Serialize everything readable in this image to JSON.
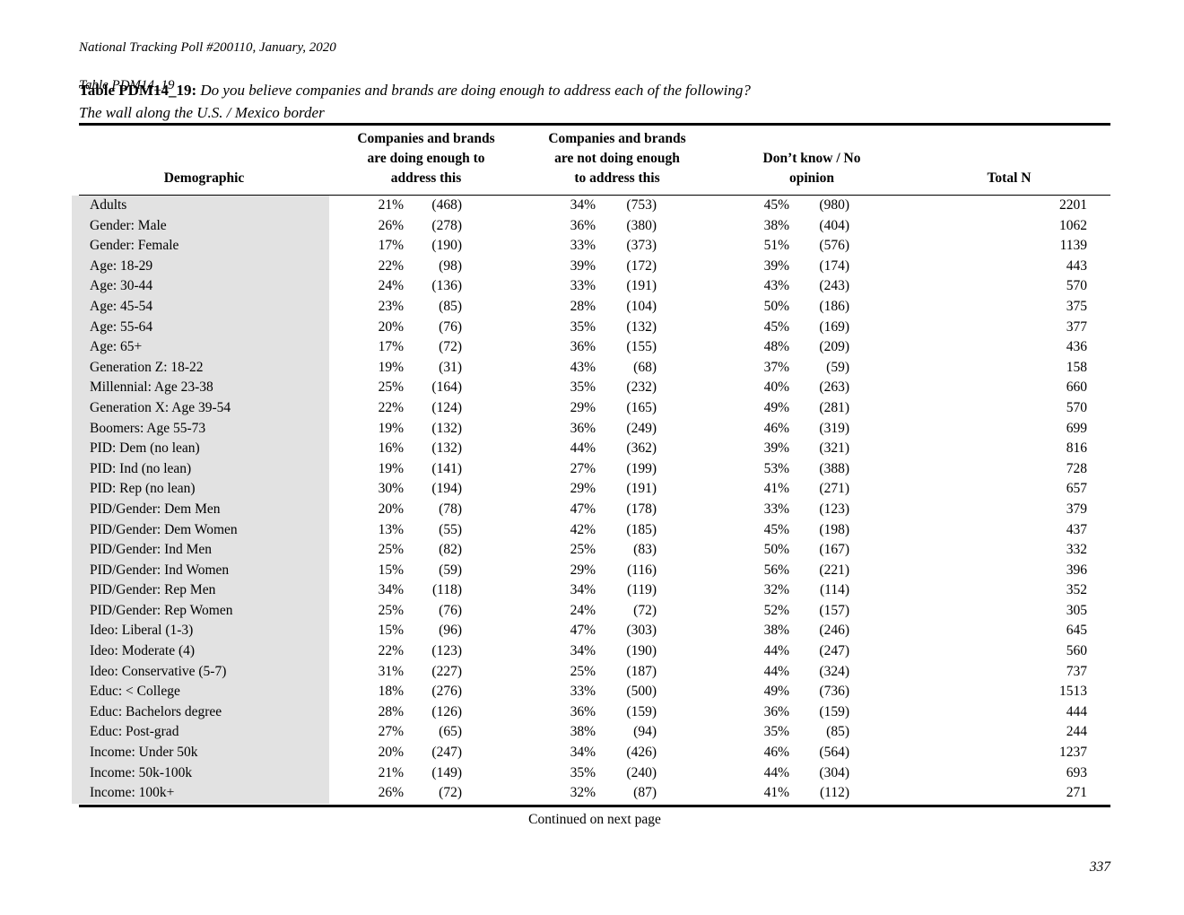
{
  "doc_header": {
    "line1": "National Tracking Poll #200110, January, 2020",
    "line2": "Table PDM14_19"
  },
  "title": {
    "label": "Table PDM14_19:",
    "question": "Do you believe companies and brands are doing enough to address each of the following?",
    "subtitle": "The wall along the U.S. / Mexico border"
  },
  "table": {
    "headers": {
      "demographic": "Demographic",
      "col1": "Companies and brands\nare doing enough to\naddress this",
      "col2": "Companies and brands\nare not doing enough\nto address this",
      "col3": "Don’t know / No\nopinion",
      "col4": "Total N"
    },
    "rows": [
      {
        "label": "Adults",
        "pct1": "21%",
        "n1": "(468)",
        "pct2": "34%",
        "n2": "(753)",
        "pct3": "45%",
        "n3": "(980)",
        "total": "2201"
      },
      {
        "label": "Gender: Male",
        "pct1": "26%",
        "n1": "(278)",
        "pct2": "36%",
        "n2": "(380)",
        "pct3": "38%",
        "n3": "(404)",
        "total": "1062"
      },
      {
        "label": "Gender: Female",
        "pct1": "17%",
        "n1": "(190)",
        "pct2": "33%",
        "n2": "(373)",
        "pct3": "51%",
        "n3": "(576)",
        "total": "1139"
      },
      {
        "label": "Age: 18-29",
        "pct1": "22%",
        "n1": "(98)",
        "pct2": "39%",
        "n2": "(172)",
        "pct3": "39%",
        "n3": "(174)",
        "total": "443"
      },
      {
        "label": "Age: 30-44",
        "pct1": "24%",
        "n1": "(136)",
        "pct2": "33%",
        "n2": "(191)",
        "pct3": "43%",
        "n3": "(243)",
        "total": "570"
      },
      {
        "label": "Age: 45-54",
        "pct1": "23%",
        "n1": "(85)",
        "pct2": "28%",
        "n2": "(104)",
        "pct3": "50%",
        "n3": "(186)",
        "total": "375"
      },
      {
        "label": "Age: 55-64",
        "pct1": "20%",
        "n1": "(76)",
        "pct2": "35%",
        "n2": "(132)",
        "pct3": "45%",
        "n3": "(169)",
        "total": "377"
      },
      {
        "label": "Age: 65+",
        "pct1": "17%",
        "n1": "(72)",
        "pct2": "36%",
        "n2": "(155)",
        "pct3": "48%",
        "n3": "(209)",
        "total": "436"
      },
      {
        "label": "Generation Z: 18-22",
        "pct1": "19%",
        "n1": "(31)",
        "pct2": "43%",
        "n2": "(68)",
        "pct3": "37%",
        "n3": "(59)",
        "total": "158"
      },
      {
        "label": "Millennial: Age 23-38",
        "pct1": "25%",
        "n1": "(164)",
        "pct2": "35%",
        "n2": "(232)",
        "pct3": "40%",
        "n3": "(263)",
        "total": "660"
      },
      {
        "label": "Generation X: Age 39-54",
        "pct1": "22%",
        "n1": "(124)",
        "pct2": "29%",
        "n2": "(165)",
        "pct3": "49%",
        "n3": "(281)",
        "total": "570"
      },
      {
        "label": "Boomers: Age 55-73",
        "pct1": "19%",
        "n1": "(132)",
        "pct2": "36%",
        "n2": "(249)",
        "pct3": "46%",
        "n3": "(319)",
        "total": "699"
      },
      {
        "label": "PID: Dem (no lean)",
        "pct1": "16%",
        "n1": "(132)",
        "pct2": "44%",
        "n2": "(362)",
        "pct3": "39%",
        "n3": "(321)",
        "total": "816"
      },
      {
        "label": "PID: Ind (no lean)",
        "pct1": "19%",
        "n1": "(141)",
        "pct2": "27%",
        "n2": "(199)",
        "pct3": "53%",
        "n3": "(388)",
        "total": "728"
      },
      {
        "label": "PID: Rep (no lean)",
        "pct1": "30%",
        "n1": "(194)",
        "pct2": "29%",
        "n2": "(191)",
        "pct3": "41%",
        "n3": "(271)",
        "total": "657"
      },
      {
        "label": "PID/Gender: Dem Men",
        "pct1": "20%",
        "n1": "(78)",
        "pct2": "47%",
        "n2": "(178)",
        "pct3": "33%",
        "n3": "(123)",
        "total": "379"
      },
      {
        "label": "PID/Gender: Dem Women",
        "pct1": "13%",
        "n1": "(55)",
        "pct2": "42%",
        "n2": "(185)",
        "pct3": "45%",
        "n3": "(198)",
        "total": "437"
      },
      {
        "label": "PID/Gender: Ind Men",
        "pct1": "25%",
        "n1": "(82)",
        "pct2": "25%",
        "n2": "(83)",
        "pct3": "50%",
        "n3": "(167)",
        "total": "332"
      },
      {
        "label": "PID/Gender: Ind Women",
        "pct1": "15%",
        "n1": "(59)",
        "pct2": "29%",
        "n2": "(116)",
        "pct3": "56%",
        "n3": "(221)",
        "total": "396"
      },
      {
        "label": "PID/Gender: Rep Men",
        "pct1": "34%",
        "n1": "(118)",
        "pct2": "34%",
        "n2": "(119)",
        "pct3": "32%",
        "n3": "(114)",
        "total": "352"
      },
      {
        "label": "PID/Gender: Rep Women",
        "pct1": "25%",
        "n1": "(76)",
        "pct2": "24%",
        "n2": "(72)",
        "pct3": "52%",
        "n3": "(157)",
        "total": "305"
      },
      {
        "label": "Ideo: Liberal (1-3)",
        "pct1": "15%",
        "n1": "(96)",
        "pct2": "47%",
        "n2": "(303)",
        "pct3": "38%",
        "n3": "(246)",
        "total": "645"
      },
      {
        "label": "Ideo: Moderate (4)",
        "pct1": "22%",
        "n1": "(123)",
        "pct2": "34%",
        "n2": "(190)",
        "pct3": "44%",
        "n3": "(247)",
        "total": "560"
      },
      {
        "label": "Ideo: Conservative (5-7)",
        "pct1": "31%",
        "n1": "(227)",
        "pct2": "25%",
        "n2": "(187)",
        "pct3": "44%",
        "n3": "(324)",
        "total": "737"
      },
      {
        "label": "Educ: < College",
        "pct1": "18%",
        "n1": "(276)",
        "pct2": "33%",
        "n2": "(500)",
        "pct3": "49%",
        "n3": "(736)",
        "total": "1513"
      },
      {
        "label": "Educ: Bachelors degree",
        "pct1": "28%",
        "n1": "(126)",
        "pct2": "36%",
        "n2": "(159)",
        "pct3": "36%",
        "n3": "(159)",
        "total": "444"
      },
      {
        "label": "Educ: Post-grad",
        "pct1": "27%",
        "n1": "(65)",
        "pct2": "38%",
        "n2": "(94)",
        "pct3": "35%",
        "n3": "(85)",
        "total": "244"
      },
      {
        "label": "Income: Under 50k",
        "pct1": "20%",
        "n1": "(247)",
        "pct2": "34%",
        "n2": "(426)",
        "pct3": "46%",
        "n3": "(564)",
        "total": "1237"
      },
      {
        "label": "Income: 50k-100k",
        "pct1": "21%",
        "n1": "(149)",
        "pct2": "35%",
        "n2": "(240)",
        "pct3": "44%",
        "n3": "(304)",
        "total": "693"
      },
      {
        "label": "Income: 100k+",
        "pct1": "26%",
        "n1": "(72)",
        "pct2": "32%",
        "n2": "(87)",
        "pct3": "41%",
        "n3": "(112)",
        "total": "271"
      }
    ]
  },
  "footer": {
    "continued": "Continued on next page",
    "page_number": "337"
  },
  "colors": {
    "row_label_bg": "#e2e2e2",
    "rule": "#000000",
    "text": "#000000"
  }
}
